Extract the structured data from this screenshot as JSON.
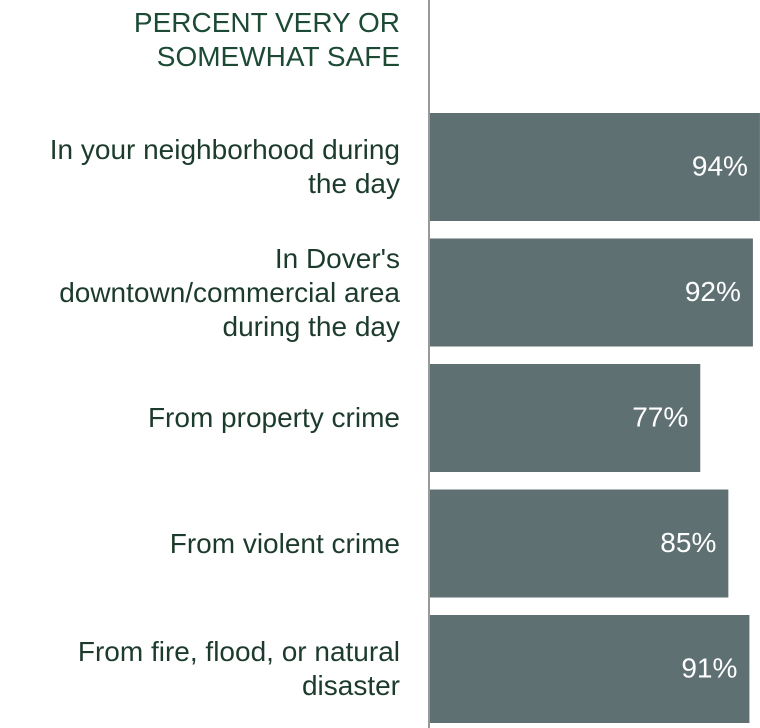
{
  "chart_data": {
    "type": "bar",
    "orientation": "horizontal",
    "title": "PERCENT VERY OR SOMEWHAT SAFE",
    "categories": [
      "In your neighborhood during the day",
      "In Dover's downtown/commercial area during the day",
      "From property crime",
      "From violent crime",
      "From fire, flood, or natural disaster"
    ],
    "values": [
      94,
      92,
      77,
      85,
      91
    ],
    "value_labels": [
      "94%",
      "92%",
      "77%",
      "85%",
      "91%"
    ],
    "color": "#5f7073",
    "xlim": [
      0,
      100
    ]
  }
}
